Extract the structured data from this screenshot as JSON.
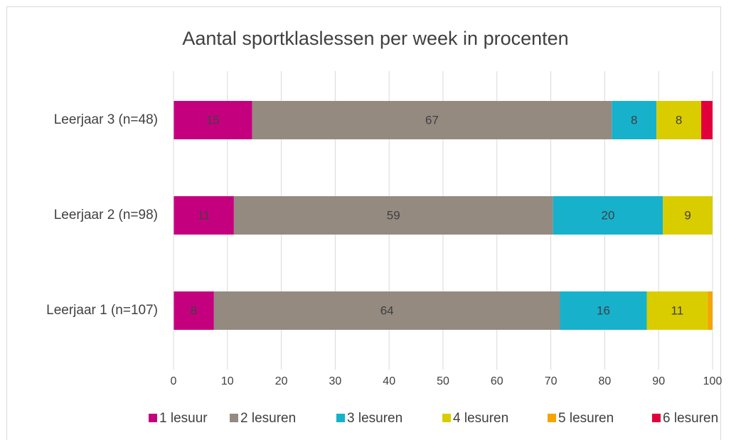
{
  "chart_data": {
    "type": "stacked-bar-horizontal",
    "title": "Aantal sportklaslessen per week in procenten",
    "categories": [
      "Leerjaar 3 (n=48)",
      "Leerjaar 2 (n=98)",
      "Leerjaar 1 (n=107)"
    ],
    "series": [
      {
        "name": "1 lesuur",
        "color": "#c5007f",
        "values": [
          14.6,
          11.2,
          7.5
        ],
        "value_labels": [
          "15",
          "11",
          "8"
        ]
      },
      {
        "name": "2 lesuren",
        "color": "#948a80",
        "values": [
          66.7,
          59.2,
          64.2
        ],
        "value_labels": [
          "67",
          "59",
          "64"
        ]
      },
      {
        "name": "3 lesuren",
        "color": "#17b1cc",
        "values": [
          8.3,
          20.4,
          16.1
        ],
        "value_labels": [
          "8",
          "20",
          "16"
        ]
      },
      {
        "name": "4 lesuren",
        "color": "#d9cd00",
        "values": [
          8.3,
          9.2,
          11.3
        ],
        "value_labels": [
          "8",
          "9",
          "11"
        ]
      },
      {
        "name": "5 lesuren",
        "color": "#f5a400",
        "values": [
          null,
          null,
          0.9
        ],
        "value_labels": [
          null,
          null,
          null
        ]
      },
      {
        "name": "6 lesuren",
        "color": "#e2003c",
        "values": [
          2.1,
          null,
          null
        ],
        "value_labels": [
          null,
          null,
          null
        ]
      }
    ],
    "xlim": [
      0,
      100
    ],
    "xticks": [
      0,
      10,
      20,
      30,
      40,
      50,
      60,
      70,
      80,
      90,
      100
    ],
    "grid": true,
    "legend": "bottom"
  }
}
